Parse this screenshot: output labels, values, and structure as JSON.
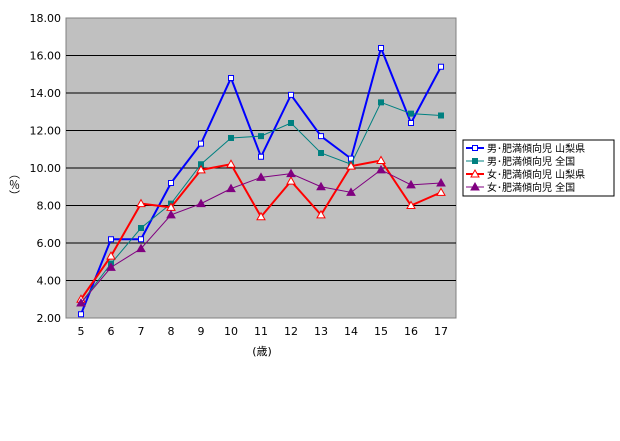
{
  "chart_data": {
    "type": "line",
    "ylabel": "（％）",
    "xlabel": "(歳)",
    "ylim": [
      2,
      18
    ],
    "y_ticks": [
      "2.00",
      "4.00",
      "6.00",
      "8.00",
      "10.00",
      "12.00",
      "14.00",
      "16.00",
      "18.00"
    ],
    "x": [
      "5",
      "6",
      "7",
      "8",
      "9",
      "10",
      "11",
      "12",
      "13",
      "14",
      "15",
      "16",
      "17"
    ],
    "grid": true,
    "plot_background": "#c0c0c0",
    "legend_position": "right",
    "series": [
      {
        "name": "男･肥満傾向児 山梨県",
        "color": "#0000ff",
        "marker": "open-square",
        "values": [
          2.2,
          6.2,
          6.2,
          9.2,
          11.3,
          14.8,
          10.6,
          13.9,
          11.7,
          10.5,
          16.4,
          12.4,
          15.4
        ]
      },
      {
        "name": "男･肥満傾向児 全国",
        "color": "#008080",
        "marker": "filled-square",
        "values": [
          2.8,
          4.9,
          6.8,
          8.1,
          10.2,
          11.6,
          11.7,
          12.4,
          10.8,
          10.2,
          13.5,
          12.9,
          12.8
        ]
      },
      {
        "name": "女･肥満傾向児 山梨県",
        "color": "#ff0000",
        "marker": "open-triangle",
        "values": [
          3.0,
          5.3,
          8.1,
          7.9,
          9.9,
          10.2,
          7.4,
          9.3,
          7.5,
          10.1,
          10.4,
          8.0,
          8.7
        ]
      },
      {
        "name": "女･肥満傾向児 全国",
        "color": "#800080",
        "marker": "filled-triangle",
        "values": [
          2.8,
          4.7,
          5.7,
          7.5,
          8.1,
          8.9,
          9.5,
          9.7,
          9.0,
          8.7,
          9.9,
          9.1,
          9.2
        ]
      }
    ]
  }
}
